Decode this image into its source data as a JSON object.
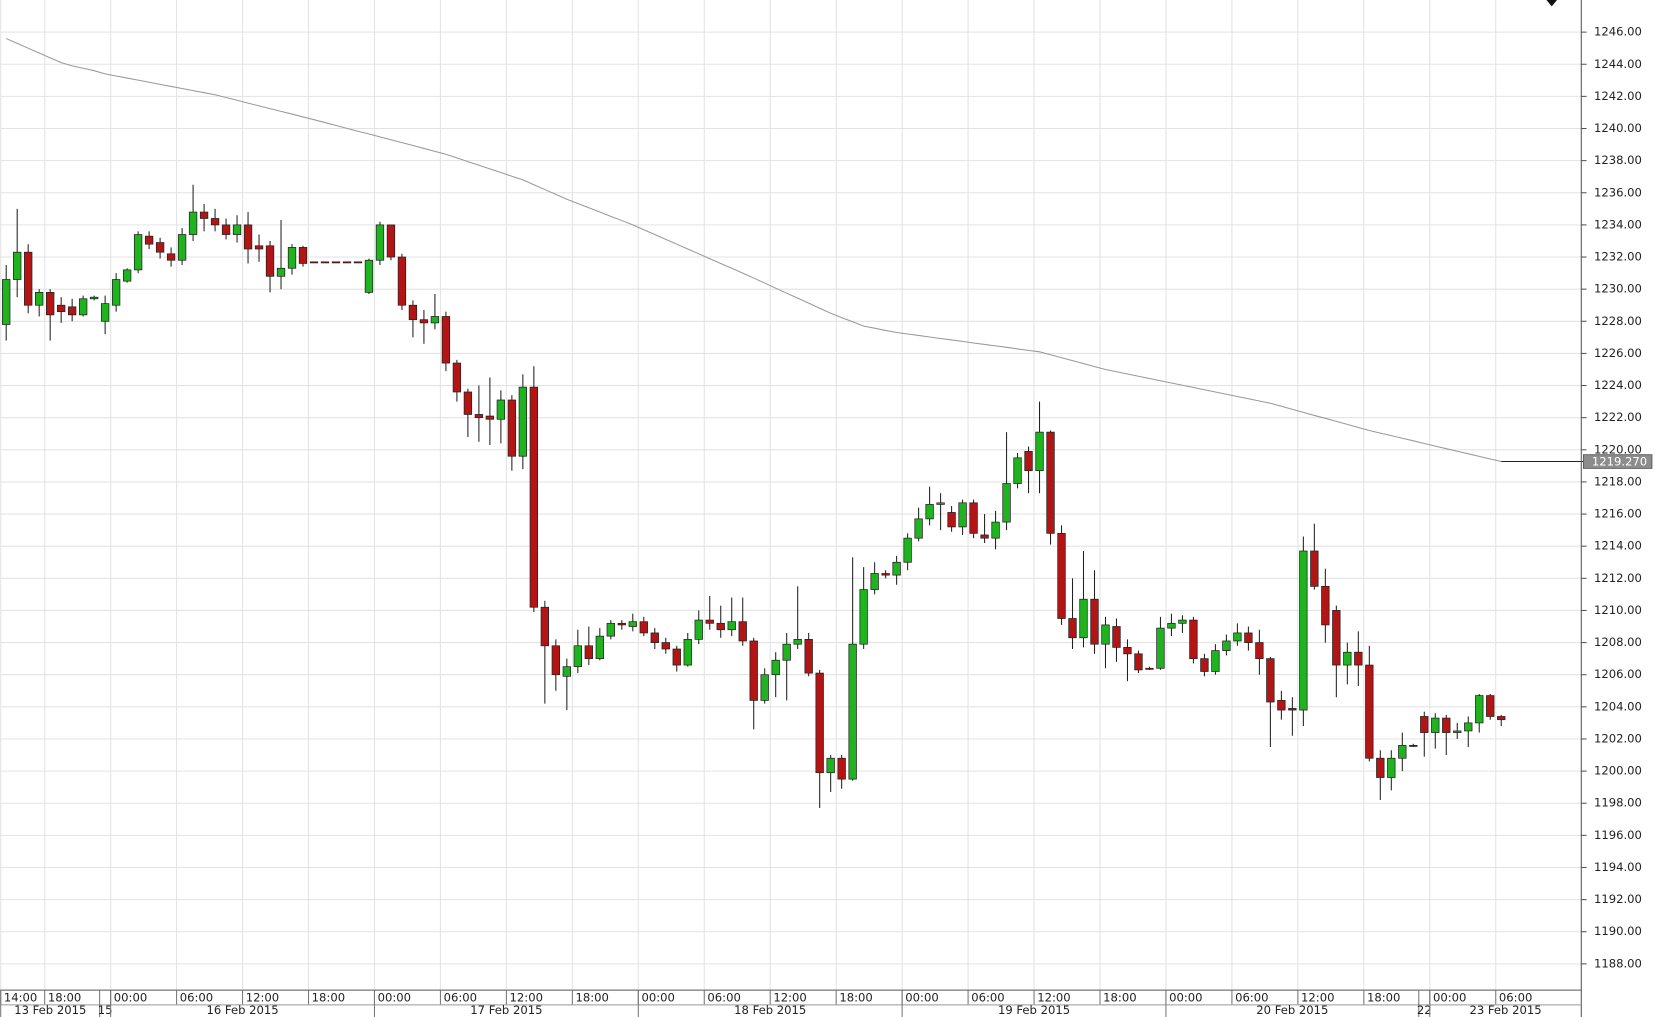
{
  "chart_data": {
    "type": "candlestick",
    "categories": [
      "14:00",
      null,
      null,
      null,
      "18:00",
      null,
      null,
      null,
      null,
      null,
      "00:00",
      null,
      null,
      null,
      null,
      null,
      "06:00",
      null,
      null,
      null,
      null,
      null,
      "12:00",
      null,
      null,
      null,
      null,
      null,
      "18:00",
      null,
      null,
      null,
      null,
      null,
      "00:00",
      null,
      null,
      null,
      null,
      null,
      "06:00",
      null,
      null,
      null,
      null,
      null,
      "12:00",
      null,
      null,
      null,
      null,
      null,
      "18:00",
      null,
      null,
      null,
      null,
      null,
      "00:00",
      null,
      null,
      null,
      null,
      null,
      "06:00",
      null,
      null,
      null,
      null,
      null,
      "12:00",
      null,
      null,
      null,
      null,
      null,
      "18:00",
      null,
      null,
      null,
      null,
      null,
      "00:00",
      null,
      null,
      null,
      null,
      null,
      "06:00",
      null,
      null,
      null,
      null,
      null,
      "12:00",
      null,
      null,
      null,
      null,
      null,
      "18:00",
      null,
      null,
      null,
      null,
      null,
      "00:00",
      null,
      null,
      null,
      null,
      null,
      "06:00",
      null,
      null,
      null,
      null,
      null,
      "12:00",
      null,
      null,
      null,
      null,
      null,
      "18:00",
      null,
      null,
      null,
      null,
      null,
      "00:00",
      null,
      null,
      null,
      null,
      null,
      "06:00"
    ],
    "days": [
      {
        "label": "13 Feb 2015",
        "first": 0
      },
      {
        "label": "15",
        "first": 9
      },
      {
        "label": "16 Feb 2015",
        "first": 10
      },
      {
        "label": "17 Feb 2015",
        "first": 34
      },
      {
        "label": "18 Feb 2015",
        "first": 58
      },
      {
        "label": "19 Feb 2015",
        "first": 82
      },
      {
        "label": "20 Feb 2015",
        "first": 106
      },
      {
        "label": "22",
        "first": 129
      },
      {
        "label": "23 Feb 2015",
        "first": 130
      }
    ],
    "open": [
      1227.8,
      1230.6,
      1232.3,
      1229.0,
      1229.8,
      1229.0,
      1228.9,
      1228.4,
      1229.4,
      1228.0,
      1229.0,
      1230.5,
      1231.2,
      1233.3,
      1232.9,
      1232.2,
      1231.8,
      1233.4,
      1234.8,
      1234.4,
      1234.0,
      1233.4,
      1234.0,
      1232.7,
      1232.7,
      1230.8,
      1231.3,
      1232.6,
      1231.7,
      1231.7,
      1231.7,
      1231.7,
      1231.7,
      1229.8,
      1231.8,
      1234.0,
      1232.0,
      1229.0,
      1228.1,
      1227.9,
      1228.3,
      1225.4,
      1223.6,
      1222.2,
      1222.1,
      1221.9,
      1223.1,
      1219.6,
      1223.9,
      1210.2,
      1207.8,
      1205.9,
      1206.5,
      1207.8,
      1207.0,
      1208.4,
      1209.2,
      1209.0,
      1209.3,
      1208.6,
      1208.0,
      1207.6,
      1206.6,
      1208.2,
      1209.4,
      1209.2,
      1208.8,
      1209.3,
      1208.1,
      1204.4,
      1206.0,
      1206.9,
      1207.9,
      1208.2,
      1206.1,
      1199.9,
      1200.8,
      1199.5,
      1207.9,
      1211.3,
      1212.3,
      1212.2,
      1213.0,
      1214.5,
      1215.7,
      1216.6,
      1216.1,
      1215.2,
      1216.7,
      1214.7,
      1214.5,
      1215.5,
      1217.9,
      1219.9,
      1218.7,
      1221.1,
      1214.8,
      1209.5,
      1208.3,
      1210.7,
      1207.9,
      1209.0,
      1207.7,
      1207.3,
      1206.4,
      1206.4,
      1208.9,
      1209.2,
      1209.4,
      1207.0,
      1206.2,
      1207.5,
      1208.1,
      1208.6,
      1208.0,
      1207.0,
      1204.4,
      1203.9,
      1203.8,
      1213.7,
      1211.5,
      1210.0,
      1206.6,
      1207.4,
      1206.6,
      1200.8,
      1199.6,
      1200.8,
      1201.6,
      1203.4,
      1202.4,
      1203.3,
      1202.4,
      1202.5,
      1203.0,
      1204.7,
      1203.4
    ],
    "high": [
      1231.5,
      1235.0,
      1232.8,
      1230.0,
      1230.0,
      1229.5,
      1229.4,
      1229.6,
      1229.6,
      1229.6,
      1231.0,
      1231.3,
      1233.6,
      1233.6,
      1233.2,
      1232.6,
      1233.8,
      1236.5,
      1235.3,
      1235.0,
      1234.4,
      1234.6,
      1234.8,
      1233.4,
      1233.0,
      1234.3,
      1232.8,
      1232.7,
      1231.7,
      1231.7,
      1231.7,
      1231.7,
      1231.7,
      1231.9,
      1234.2,
      1234.0,
      1232.2,
      1229.3,
      1228.7,
      1229.7,
      1228.6,
      1225.6,
      1223.8,
      1224.0,
      1224.5,
      1223.7,
      1223.4,
      1224.7,
      1225.2,
      1210.6,
      1208.2,
      1207.0,
      1208.8,
      1209.0,
      1208.9,
      1209.4,
      1209.4,
      1209.8,
      1209.6,
      1208.9,
      1208.3,
      1207.8,
      1208.6,
      1210.0,
      1210.9,
      1210.3,
      1210.8,
      1210.8,
      1208.3,
      1206.4,
      1207.4,
      1208.6,
      1211.5,
      1208.6,
      1206.3,
      1201.0,
      1201.0,
      1213.3,
      1212.7,
      1213.0,
      1212.5,
      1213.4,
      1214.8,
      1216.4,
      1217.7,
      1217.3,
      1216.5,
      1216.9,
      1216.9,
      1216.0,
      1216.2,
      1221.1,
      1219.8,
      1220.2,
      1223.0,
      1221.2,
      1215.3,
      1212.0,
      1213.7,
      1212.5,
      1209.6,
      1209.5,
      1208.2,
      1207.5,
      1206.5,
      1209.6,
      1209.8,
      1209.7,
      1209.6,
      1207.3,
      1207.9,
      1208.5,
      1209.2,
      1209.0,
      1208.8,
      1207.1,
      1205.0,
      1204.6,
      1214.6,
      1215.4,
      1212.6,
      1210.3,
      1208.0,
      1208.7,
      1207.8,
      1201.3,
      1201.3,
      1202.4,
      1201.7,
      1203.7,
      1203.6,
      1203.5,
      1203.0,
      1203.4,
      1204.8,
      1204.8,
      1203.5
    ],
    "low": [
      1226.8,
      1229.5,
      1228.5,
      1228.3,
      1226.8,
      1227.9,
      1228.0,
      1228.3,
      1229.3,
      1227.2,
      1228.6,
      1230.4,
      1231.0,
      1232.5,
      1231.9,
      1231.4,
      1231.5,
      1233.0,
      1233.6,
      1233.6,
      1233.1,
      1232.9,
      1231.6,
      1231.7,
      1229.8,
      1230.0,
      1230.9,
      1231.4,
      1231.7,
      1231.7,
      1231.7,
      1231.7,
      1231.7,
      1229.7,
      1231.5,
      1231.8,
      1228.7,
      1227.0,
      1226.6,
      1227.5,
      1224.9,
      1223.0,
      1220.8,
      1220.5,
      1220.3,
      1220.4,
      1218.7,
      1218.8,
      1209.9,
      1204.2,
      1205.0,
      1203.8,
      1206.1,
      1206.6,
      1206.9,
      1208.2,
      1208.8,
      1208.7,
      1208.4,
      1207.6,
      1207.3,
      1206.2,
      1206.5,
      1207.9,
      1208.8,
      1208.3,
      1208.4,
      1207.8,
      1202.6,
      1204.2,
      1204.6,
      1204.4,
      1207.6,
      1205.9,
      1197.7,
      1198.7,
      1198.9,
      1199.4,
      1207.6,
      1211.0,
      1212.0,
      1211.6,
      1212.5,
      1214.3,
      1215.3,
      1215.0,
      1214.9,
      1214.7,
      1214.5,
      1214.2,
      1213.8,
      1215.0,
      1217.6,
      1217.3,
      1217.3,
      1214.1,
      1209.1,
      1207.6,
      1207.7,
      1207.3,
      1206.4,
      1206.8,
      1205.6,
      1206.1,
      1206.3,
      1206.3,
      1208.4,
      1208.6,
      1206.7,
      1205.9,
      1206.0,
      1207.2,
      1207.8,
      1207.5,
      1206.0,
      1201.5,
      1203.2,
      1202.2,
      1202.8,
      1211.3,
      1208.0,
      1204.6,
      1205.4,
      1205.3,
      1200.6,
      1198.2,
      1198.8,
      1200.0,
      1201.5,
      1200.9,
      1201.4,
      1201.0,
      1202.0,
      1201.5,
      1202.4,
      1203.2,
      1202.8
    ],
    "close": [
      1230.6,
      1232.3,
      1229.0,
      1229.8,
      1228.4,
      1228.6,
      1228.4,
      1229.4,
      1229.5,
      1229.1,
      1230.6,
      1231.2,
      1233.4,
      1232.8,
      1232.3,
      1231.8,
      1233.4,
      1234.8,
      1234.4,
      1234.0,
      1233.4,
      1234.0,
      1232.5,
      1232.5,
      1230.8,
      1231.3,
      1232.6,
      1231.6,
      1231.7,
      1231.7,
      1231.7,
      1231.7,
      1231.7,
      1231.8,
      1234.0,
      1232.0,
      1229.0,
      1228.1,
      1227.9,
      1228.3,
      1225.4,
      1223.6,
      1222.2,
      1222.0,
      1221.9,
      1223.1,
      1219.6,
      1223.9,
      1210.2,
      1207.8,
      1206.0,
      1206.5,
      1207.8,
      1207.0,
      1208.4,
      1209.2,
      1209.1,
      1209.3,
      1208.6,
      1208.0,
      1207.6,
      1206.6,
      1208.2,
      1209.4,
      1209.2,
      1208.8,
      1209.3,
      1208.1,
      1204.4,
      1206.0,
      1206.9,
      1207.9,
      1208.2,
      1206.1,
      1199.9,
      1200.8,
      1199.5,
      1207.9,
      1211.3,
      1212.3,
      1212.2,
      1213.0,
      1214.5,
      1215.7,
      1216.6,
      1216.7,
      1215.2,
      1216.7,
      1214.8,
      1214.5,
      1215.5,
      1217.9,
      1219.5,
      1218.7,
      1221.1,
      1214.8,
      1209.5,
      1208.3,
      1210.7,
      1207.9,
      1209.1,
      1207.7,
      1207.3,
      1206.3,
      1206.4,
      1208.9,
      1209.2,
      1209.4,
      1207.0,
      1206.2,
      1207.5,
      1208.1,
      1208.6,
      1208.0,
      1207.0,
      1204.3,
      1203.8,
      1203.8,
      1213.7,
      1211.5,
      1209.1,
      1206.6,
      1207.4,
      1206.6,
      1200.8,
      1199.6,
      1200.8,
      1201.6,
      1201.6,
      1202.4,
      1203.3,
      1202.4,
      1202.5,
      1203.0,
      1204.7,
      1203.4,
      1203.2
    ],
    "up_color": "#1fb31f",
    "down_color": "#b31515",
    "ma": {
      "color": "#9a9a9a",
      "values": [
        1245.6,
        1245.3,
        1245.0,
        1244.7,
        1244.4,
        1244.1,
        1243.9,
        1243.75,
        1243.6,
        1243.4,
        1243.27,
        1243.14,
        1243.01,
        1242.88,
        1242.75,
        1242.62,
        1242.49,
        1242.36,
        1242.23,
        1242.1,
        1241.93,
        1241.76,
        1241.58,
        1241.41,
        1241.24,
        1241.07,
        1240.9,
        1240.72,
        1240.55,
        1240.37,
        1240.19,
        1240.01,
        1239.83,
        1239.66,
        1239.48,
        1239.3,
        1239.12,
        1238.94,
        1238.76,
        1238.58,
        1238.4,
        1238.17,
        1237.94,
        1237.71,
        1237.49,
        1237.26,
        1237.03,
        1236.8,
        1236.5,
        1236.2,
        1235.9,
        1235.6,
        1235.33,
        1235.07,
        1234.8,
        1234.53,
        1234.27,
        1234.0,
        1233.7,
        1233.4,
        1233.1,
        1232.8,
        1232.5,
        1232.2,
        1231.9,
        1231.6,
        1231.3,
        1231.0,
        1230.69,
        1230.38,
        1230.06,
        1229.75,
        1229.44,
        1229.13,
        1228.81,
        1228.5,
        1228.23,
        1227.97,
        1227.7,
        1227.57,
        1227.43,
        1227.3,
        1227.21,
        1227.12,
        1227.02,
        1226.93,
        1226.84,
        1226.75,
        1226.65,
        1226.56,
        1226.47,
        1226.38,
        1226.28,
        1226.19,
        1226.1,
        1225.92,
        1225.73,
        1225.55,
        1225.37,
        1225.18,
        1225.0,
        1224.86,
        1224.72,
        1224.58,
        1224.44,
        1224.3,
        1224.16,
        1224.02,
        1223.88,
        1223.74,
        1223.6,
        1223.46,
        1223.32,
        1223.18,
        1223.04,
        1222.9,
        1222.71,
        1222.52,
        1222.33,
        1222.14,
        1221.96,
        1221.77,
        1221.58,
        1221.39,
        1221.2,
        1221.04,
        1220.88,
        1220.72,
        1220.56,
        1220.39,
        1220.23,
        1220.07,
        1219.91,
        1219.75,
        1219.59,
        1219.43,
        1219.27
      ]
    },
    "current_label": "1219.270",
    "ylim": [
      1186.4,
      1248.0
    ],
    "yticks": [
      {
        "value": 1188,
        "label": "1188.00"
      },
      {
        "value": 1190,
        "label": "1190.00"
      },
      {
        "value": 1192,
        "label": "1192.00"
      },
      {
        "value": 1194,
        "label": "1194.00"
      },
      {
        "value": 1196,
        "label": "1196.00"
      },
      {
        "value": 1198,
        "label": "1198.00"
      },
      {
        "value": 1200,
        "label": "1200.00"
      },
      {
        "value": 1202,
        "label": "1202.00"
      },
      {
        "value": 1204,
        "label": "1204.00"
      },
      {
        "value": 1206,
        "label": "1206.00"
      },
      {
        "value": 1208,
        "label": "1208.00"
      },
      {
        "value": 1210,
        "label": "1210.00"
      },
      {
        "value": 1212,
        "label": "1212.00"
      },
      {
        "value": 1214,
        "label": "1214.00"
      },
      {
        "value": 1216,
        "label": "1216.00"
      },
      {
        "value": 1218,
        "label": "1218.00"
      },
      {
        "value": 1220,
        "label": "1220.00"
      },
      {
        "value": 1222,
        "label": "1222.00"
      },
      {
        "value": 1224,
        "label": "1224.00"
      },
      {
        "value": 1226,
        "label": "1226.00"
      },
      {
        "value": 1228,
        "label": "1228.00"
      },
      {
        "value": 1230,
        "label": "1230.00"
      },
      {
        "value": 1232,
        "label": "1232.00"
      },
      {
        "value": 1234,
        "label": "1234.00"
      },
      {
        "value": 1236,
        "label": "1236.00"
      },
      {
        "value": 1238,
        "label": "1238.00"
      },
      {
        "value": 1240,
        "label": "1240.00"
      },
      {
        "value": 1242,
        "label": "1242.00"
      },
      {
        "value": 1244,
        "label": "1244.00"
      },
      {
        "value": 1246,
        "label": "1246.00"
      }
    ],
    "grid": true
  }
}
